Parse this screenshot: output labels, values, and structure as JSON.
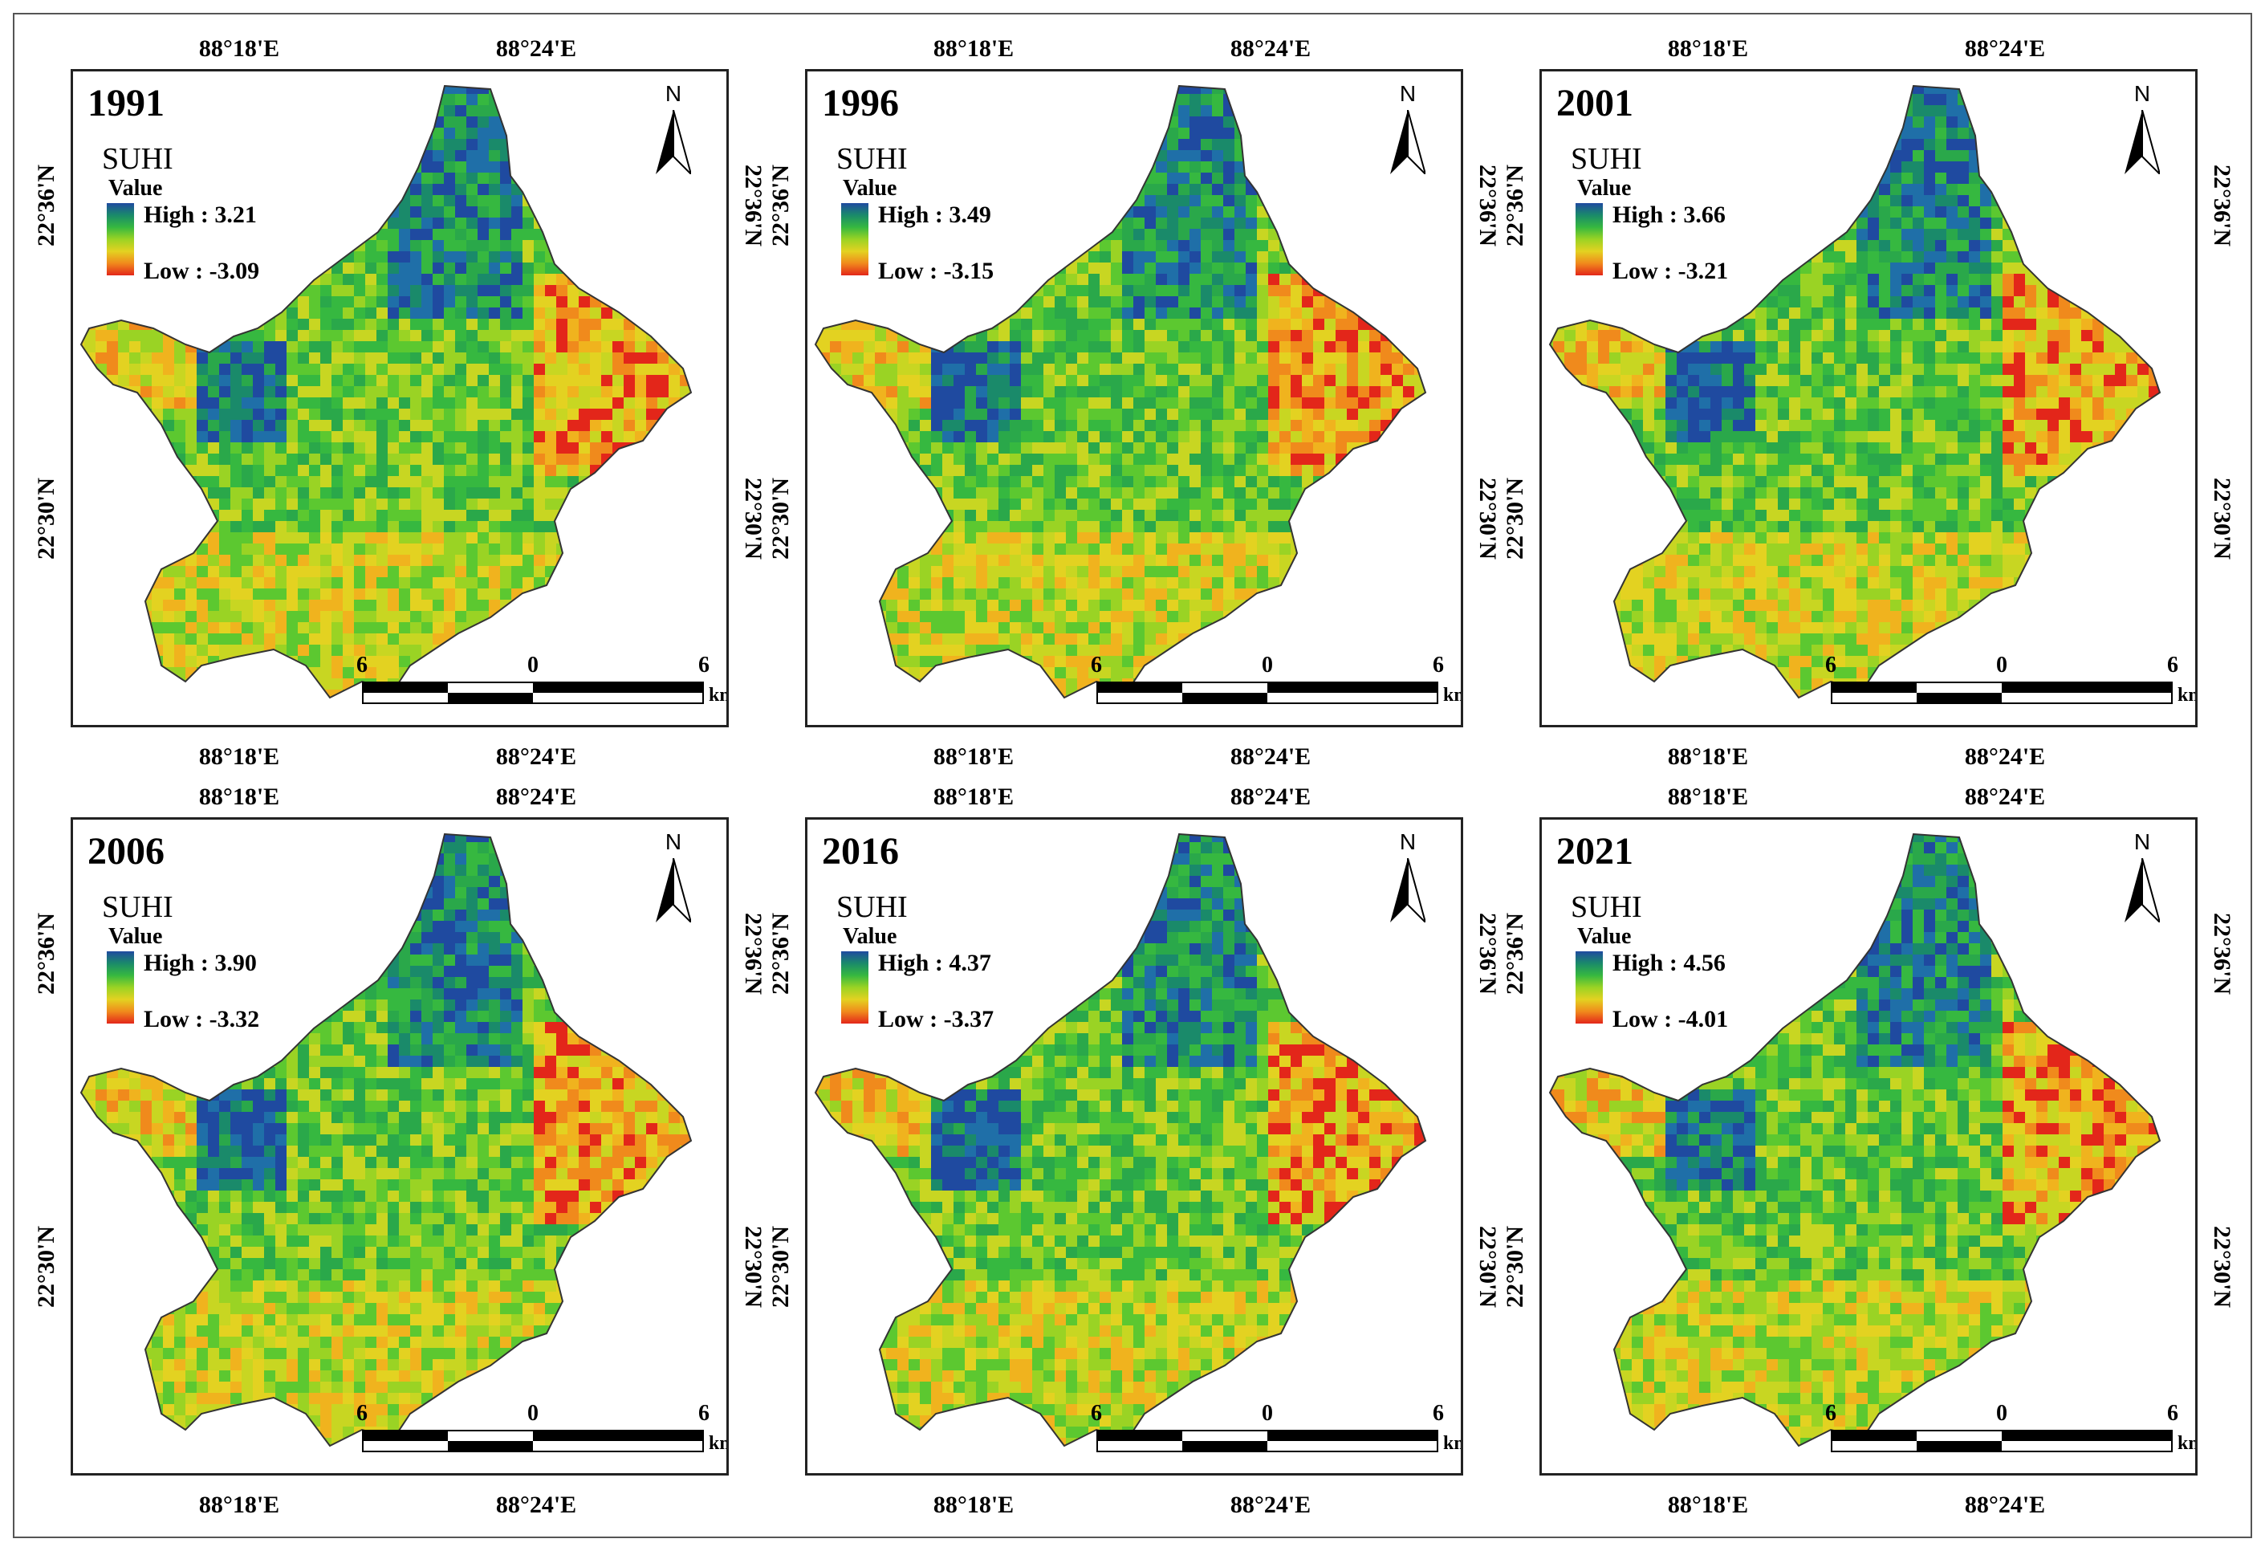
{
  "figure": {
    "coords": {
      "lon_left": "88°18'E",
      "lon_right": "88°24'E",
      "lat_upper": "22°36'N",
      "lat_lower": "22°30'N"
    },
    "legend": {
      "title": "SUHI",
      "subtitle": "Value",
      "high_prefix": "High : ",
      "low_prefix": "Low : "
    },
    "north_label": "N",
    "scale": {
      "left": "6",
      "mid": "0",
      "right": "6",
      "unit": "km"
    },
    "colors": {
      "high": "#1f4aa0",
      "mid": "#36b840",
      "low": "#e3261a"
    }
  },
  "panels": [
    {
      "year": "1991",
      "high": "3.21",
      "low": "-3.09",
      "high_text": "High : 3.21",
      "low_text": "Low : -3.09"
    },
    {
      "year": "1996",
      "high": "3.49",
      "low": "-3.15",
      "high_text": "High : 3.49",
      "low_text": "Low : -3.15"
    },
    {
      "year": "2001",
      "high": "3.66",
      "low": "-3.21",
      "high_text": "High : 3.66",
      "low_text": "Low : -3.21"
    },
    {
      "year": "2006",
      "high": "3.90",
      "low": "-3.32",
      "high_text": "High : 3.90",
      "low_text": "Low : -3.32"
    },
    {
      "year": "2016",
      "high": "4.37",
      "low": "-3.37",
      "high_text": "High : 4.37",
      "low_text": "Low : -3.37"
    },
    {
      "year": "2021",
      "high": "4.56",
      "low": "-4.01",
      "high_text": "High : 4.56",
      "low_text": "Low : -4.01"
    }
  ]
}
